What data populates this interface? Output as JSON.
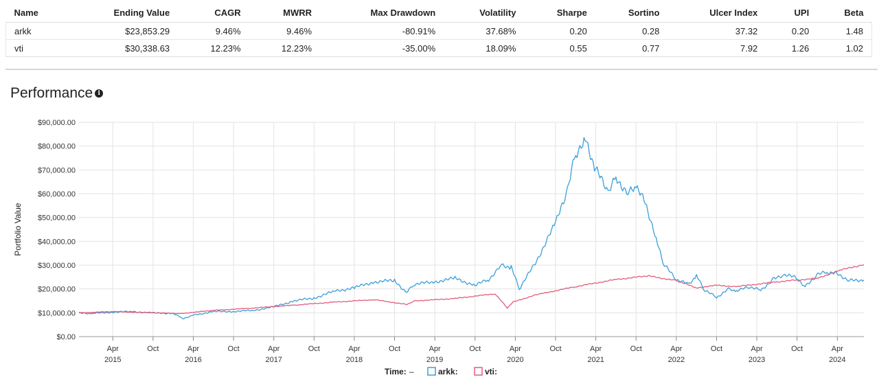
{
  "table": {
    "headers": [
      "Name",
      "Ending Value",
      "CAGR",
      "MWRR",
      "Max Drawdown",
      "Volatility",
      "Sharpe",
      "Sortino",
      "Ulcer Index",
      "UPI",
      "Beta"
    ],
    "rows": [
      [
        "arkk",
        "$23,853.29",
        "9.46%",
        "9.46%",
        "-80.91%",
        "37.68%",
        "0.20",
        "0.28",
        "37.32",
        "0.20",
        "1.48"
      ],
      [
        "vti",
        "$30,338.63",
        "12.23%",
        "12.23%",
        "-35.00%",
        "18.09%",
        "0.55",
        "0.77",
        "7.92",
        "1.26",
        "1.02"
      ]
    ]
  },
  "section": {
    "title": "Performance",
    "info_glyph": "i"
  },
  "chart_data": {
    "type": "line",
    "title": "Performance",
    "xlabel": "",
    "ylabel": "Portfolio Value",
    "ylim": [
      0,
      90000
    ],
    "xlim": [
      2014.83,
      2024.58
    ],
    "grid": true,
    "y_ticks": [
      {
        "value": 0,
        "label": "$0.00"
      },
      {
        "value": 10000,
        "label": "$10,000.00"
      },
      {
        "value": 20000,
        "label": "$20,000.00"
      },
      {
        "value": 30000,
        "label": "$30,000.00"
      },
      {
        "value": 40000,
        "label": "$40,000.00"
      },
      {
        "value": 50000,
        "label": "$50,000.00"
      },
      {
        "value": 60000,
        "label": "$60,000.00"
      },
      {
        "value": 70000,
        "label": "$70,000.00"
      },
      {
        "value": 80000,
        "label": "$80,000.00"
      },
      {
        "value": 90000,
        "label": "$90,000.00"
      }
    ],
    "x_ticks": [
      {
        "value": 2015.25,
        "label": "Apr",
        "year": "2015"
      },
      {
        "value": 2015.75,
        "label": "Oct",
        "year": ""
      },
      {
        "value": 2016.25,
        "label": "Apr",
        "year": "2016"
      },
      {
        "value": 2016.75,
        "label": "Oct",
        "year": ""
      },
      {
        "value": 2017.25,
        "label": "Apr",
        "year": "2017"
      },
      {
        "value": 2017.75,
        "label": "Oct",
        "year": ""
      },
      {
        "value": 2018.25,
        "label": "Apr",
        "year": "2018"
      },
      {
        "value": 2018.75,
        "label": "Oct",
        "year": ""
      },
      {
        "value": 2019.25,
        "label": "Apr",
        "year": "2019"
      },
      {
        "value": 2019.75,
        "label": "Oct",
        "year": ""
      },
      {
        "value": 2020.25,
        "label": "Apr",
        "year": "2020"
      },
      {
        "value": 2020.75,
        "label": "Oct",
        "year": ""
      },
      {
        "value": 2021.25,
        "label": "Apr",
        "year": "2021"
      },
      {
        "value": 2021.75,
        "label": "Oct",
        "year": ""
      },
      {
        "value": 2022.25,
        "label": "Apr",
        "year": "2022"
      },
      {
        "value": 2022.75,
        "label": "Oct",
        "year": ""
      },
      {
        "value": 2023.25,
        "label": "Apr",
        "year": "2023"
      },
      {
        "value": 2023.75,
        "label": "Oct",
        "year": ""
      },
      {
        "value": 2024.25,
        "label": "Apr",
        "year": "2024"
      }
    ],
    "series": [
      {
        "name": "arkk",
        "color": "#3a9ed8",
        "x": [
          2014.83,
          2015.0,
          2015.25,
          2015.5,
          2015.75,
          2016.0,
          2016.12,
          2016.25,
          2016.5,
          2016.75,
          2017.0,
          2017.25,
          2017.5,
          2017.75,
          2018.0,
          2018.25,
          2018.5,
          2018.75,
          2018.9,
          2019.0,
          2019.25,
          2019.5,
          2019.75,
          2019.92,
          2020.08,
          2020.2,
          2020.3,
          2020.5,
          2020.75,
          2020.9,
          2021.0,
          2021.12,
          2021.25,
          2021.4,
          2021.5,
          2021.65,
          2021.75,
          2021.88,
          2022.0,
          2022.1,
          2022.25,
          2022.4,
          2022.5,
          2022.6,
          2022.75,
          2022.9,
          2023.0,
          2023.15,
          2023.3,
          2023.45,
          2023.6,
          2023.75,
          2023.85,
          2024.0,
          2024.12,
          2024.25,
          2024.4,
          2024.58
        ],
        "values": [
          9900,
          9700,
          10300,
          10500,
          9900,
          9800,
          7600,
          9000,
          10500,
          10600,
          11000,
          12500,
          15000,
          16200,
          19000,
          20500,
          23000,
          23500,
          18500,
          22000,
          23000,
          24500,
          21500,
          24000,
          30000,
          29000,
          20000,
          31000,
          47500,
          62000,
          77000,
          83000,
          70000,
          61000,
          67000,
          60000,
          63000,
          55000,
          41000,
          30000,
          24000,
          22000,
          25500,
          19500,
          16500,
          20000,
          19000,
          21000,
          19500,
          24000,
          26000,
          24500,
          21000,
          26000,
          27000,
          26500,
          23500,
          23800
        ]
      },
      {
        "name": "vti",
        "color": "#e35b7a",
        "x": [
          2014.83,
          2015.25,
          2015.75,
          2016.1,
          2016.5,
          2017.0,
          2017.5,
          2018.0,
          2018.5,
          2018.9,
          2019.0,
          2019.5,
          2020.0,
          2020.15,
          2020.22,
          2020.5,
          2021.0,
          2021.5,
          2021.9,
          2022.25,
          2022.5,
          2022.75,
          2023.0,
          2023.5,
          2024.0,
          2024.3,
          2024.58
        ],
        "values": [
          10000,
          10500,
          10000,
          9700,
          11000,
          12000,
          13200,
          14500,
          15500,
          13500,
          15000,
          16000,
          18000,
          12000,
          14500,
          17500,
          21000,
          24000,
          25500,
          23500,
          20500,
          21500,
          21000,
          23000,
          24500,
          28000,
          30300
        ]
      }
    ],
    "legend": {
      "title": "Time:",
      "title_value": "–",
      "position": "bottom-center"
    }
  }
}
